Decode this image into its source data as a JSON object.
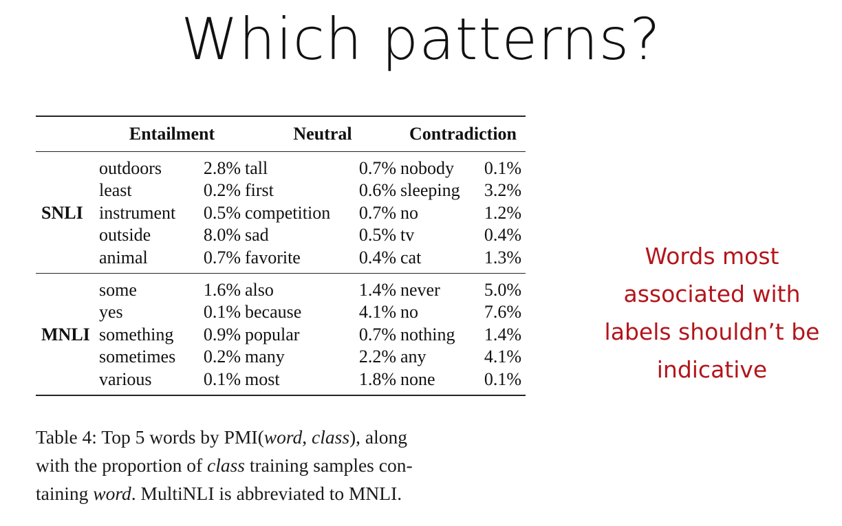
{
  "title": "Which patterns?",
  "table": {
    "headers": [
      "Entailment",
      "Neutral",
      "Contradiction"
    ],
    "groups": [
      {
        "dataset": "SNLI",
        "rows": [
          [
            "outdoors",
            "2.8%",
            "tall",
            "0.7%",
            "nobody",
            "0.1%"
          ],
          [
            "least",
            "0.2%",
            "first",
            "0.6%",
            "sleeping",
            "3.2%"
          ],
          [
            "instrument",
            "0.5%",
            "competition",
            "0.7%",
            "no",
            "1.2%"
          ],
          [
            "outside",
            "8.0%",
            "sad",
            "0.5%",
            "tv",
            "0.4%"
          ],
          [
            "animal",
            "0.7%",
            "favorite",
            "0.4%",
            "cat",
            "1.3%"
          ]
        ]
      },
      {
        "dataset": "MNLI",
        "rows": [
          [
            "some",
            "1.6%",
            "also",
            "1.4%",
            "never",
            "5.0%"
          ],
          [
            "yes",
            "0.1%",
            "because",
            "4.1%",
            "no",
            "7.6%"
          ],
          [
            "something",
            "0.9%",
            "popular",
            "0.7%",
            "nothing",
            "1.4%"
          ],
          [
            "sometimes",
            "0.2%",
            "many",
            "2.2%",
            "any",
            "4.1%"
          ],
          [
            "various",
            "0.1%",
            "most",
            "1.8%",
            "none",
            "0.1%"
          ]
        ]
      }
    ]
  },
  "caption": {
    "line1a": "Table 4: Top 5 words by PMI(",
    "line1b": "word",
    "line1c": ", ",
    "line1d": "class",
    "line1e": "), along",
    "line2a": "with the proportion of ",
    "line2b": "class",
    "line2c": " training samples con-",
    "line3a": "taining ",
    "line3b": "word",
    "line3c": ". MultiNLI is abbreviated to MNLI."
  },
  "note": {
    "lines": [
      "Words most",
      "associated with",
      "labels shouldn’t be",
      "indicative"
    ],
    "color": "#b3151b"
  }
}
